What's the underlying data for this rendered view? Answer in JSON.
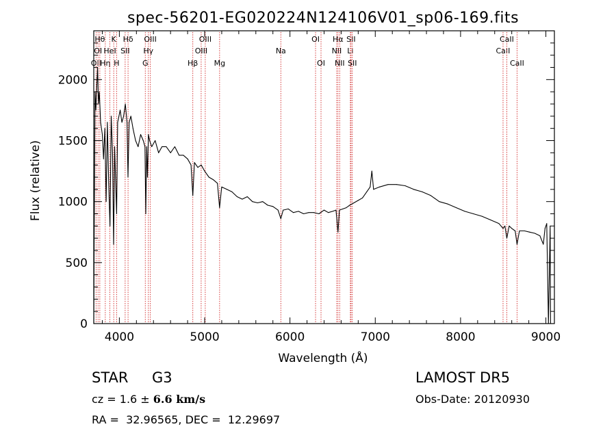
{
  "chart_data": {
    "type": "line",
    "title": "spec-56201-EG020224N124106V01_sp06-169.fits",
    "xlabel": "Wavelength (Å)",
    "ylabel": "Flux (relative)",
    "xlim": [
      3700,
      9100
    ],
    "ylim": [
      0,
      2400
    ],
    "xticks": [
      4000,
      5000,
      6000,
      7000,
      8000,
      9000
    ],
    "yticks": [
      0,
      500,
      1000,
      1500,
      2000
    ],
    "grid": false,
    "series": [
      {
        "x": [
          3700,
          3705,
          3715,
          3725,
          3735,
          3745,
          3755,
          3765,
          3780,
          3800,
          3815,
          3830,
          3845,
          3860,
          3875,
          3890,
          3905,
          3920,
          3933,
          3945,
          3955,
          3968,
          3980,
          3995,
          4010,
          4030,
          4050,
          4070,
          4090,
          4101,
          4115,
          4135,
          4160,
          4190,
          4220,
          4250,
          4280,
          4300,
          4310,
          4320,
          4330,
          4340,
          4355,
          4380,
          4420,
          4460,
          4500,
          4550,
          4600,
          4650,
          4700,
          4750,
          4800,
          4840,
          4861,
          4880,
          4920,
          4960,
          5000,
          5050,
          5100,
          5150,
          5175,
          5200,
          5260,
          5320,
          5380,
          5440,
          5500,
          5560,
          5620,
          5680,
          5740,
          5800,
          5860,
          5893,
          5920,
          5980,
          6040,
          6100,
          6160,
          6220,
          6280,
          6340,
          6400,
          6450,
          6500,
          6540,
          6563,
          6580,
          6620,
          6660,
          6700,
          6750,
          6800,
          6850,
          6900,
          6940,
          6960,
          6980,
          7050,
          7150,
          7250,
          7350,
          7450,
          7550,
          7650,
          7750,
          7850,
          7950,
          8050,
          8150,
          8250,
          8350,
          8450,
          8498,
          8520,
          8542,
          8570,
          8600,
          8640,
          8662,
          8690,
          8750,
          8810,
          8870,
          8930,
          8970,
          8990,
          9010,
          9030,
          9050,
          9055
        ],
        "y": [
          0,
          700,
          1900,
          1750,
          1950,
          2100,
          1800,
          1900,
          1650,
          1550,
          1350,
          1600,
          1000,
          1650,
          1150,
          800,
          1700,
          1400,
          650,
          1450,
          1200,
          900,
          1650,
          1700,
          1750,
          1650,
          1700,
          1800,
          1650,
          1200,
          1650,
          1700,
          1600,
          1500,
          1450,
          1550,
          1500,
          1450,
          900,
          1450,
          1200,
          1550,
          1500,
          1450,
          1500,
          1400,
          1450,
          1450,
          1400,
          1450,
          1380,
          1380,
          1350,
          1300,
          1050,
          1320,
          1280,
          1300,
          1250,
          1200,
          1180,
          1150,
          950,
          1120,
          1100,
          1080,
          1040,
          1020,
          1040,
          1000,
          990,
          1000,
          970,
          960,
          930,
          860,
          930,
          940,
          910,
          920,
          900,
          910,
          910,
          900,
          930,
          910,
          920,
          930,
          750,
          930,
          940,
          950,
          970,
          990,
          1010,
          1030,
          1080,
          1120,
          1250,
          1100,
          1120,
          1140,
          1140,
          1130,
          1100,
          1080,
          1050,
          1000,
          980,
          950,
          920,
          900,
          880,
          850,
          820,
          780,
          800,
          700,
          800,
          780,
          760,
          650,
          760,
          760,
          750,
          740,
          720,
          650,
          780,
          820,
          0,
          800,
          0
        ]
      }
    ],
    "lines": [
      {
        "x": 3727,
        "label": "OII",
        "row": 3
      },
      {
        "x": 3750,
        "label": "OI",
        "row": 2
      },
      {
        "x": 3771,
        "label": "Hθ",
        "row": 1
      },
      {
        "x": 3835,
        "label": "Hη",
        "row": 3
      },
      {
        "x": 3889,
        "label": "HeI",
        "row": 2
      },
      {
        "x": 3934,
        "label": "K",
        "row": 1
      },
      {
        "x": 3968,
        "label": "H",
        "row": 3
      },
      {
        "x": 4068,
        "label": "SII",
        "row": 2
      },
      {
        "x": 4102,
        "label": "Hδ",
        "row": 1
      },
      {
        "x": 4304,
        "label": "G",
        "row": 3
      },
      {
        "x": 4340,
        "label": "Hγ",
        "row": 2
      },
      {
        "x": 4363,
        "label": "OIII",
        "row": 1
      },
      {
        "x": 4861,
        "label": "Hβ",
        "row": 3
      },
      {
        "x": 4959,
        "label": "OIII",
        "row": 2
      },
      {
        "x": 5007,
        "label": "OIII",
        "row": 1
      },
      {
        "x": 5175,
        "label": "Mg",
        "row": 3
      },
      {
        "x": 5893,
        "label": "Na",
        "row": 2
      },
      {
        "x": 6300,
        "label": "OI",
        "row": 1
      },
      {
        "x": 6364,
        "label": "OI",
        "row": 3
      },
      {
        "x": 6548,
        "label": "NII",
        "row": 2
      },
      {
        "x": 6563,
        "label": "Hα",
        "row": 1
      },
      {
        "x": 6583,
        "label": "NII",
        "row": 3
      },
      {
        "x": 6708,
        "label": "Li",
        "row": 2
      },
      {
        "x": 6716,
        "label": "SII",
        "row": 1
      },
      {
        "x": 6731,
        "label": "SII",
        "row": 3
      },
      {
        "x": 8498,
        "label": "CaII",
        "row": 2
      },
      {
        "x": 8542,
        "label": "CaII",
        "row": 1
      },
      {
        "x": 8662,
        "label": "CaII",
        "row": 3
      }
    ]
  },
  "info": {
    "object_class": "STAR",
    "subclass": "G3",
    "survey": "LAMOST DR5",
    "cz_prefix": "cz = 1.6 ± ",
    "cz_error": "6.6 km/s",
    "obs_date": "Obs-Date: 20120930",
    "coords": "RA =  32.96565, DEC =  12.29697"
  }
}
